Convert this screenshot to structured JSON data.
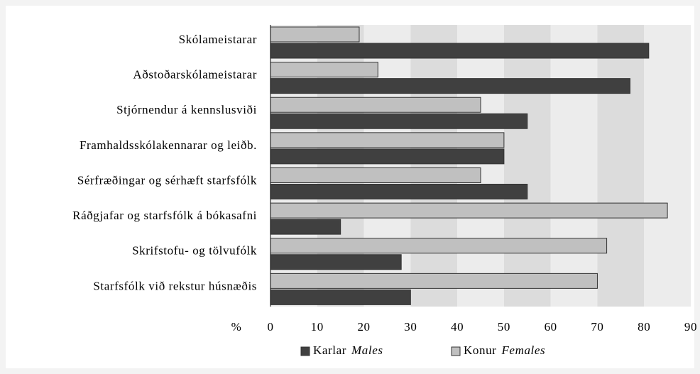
{
  "chart_data": {
    "type": "barh",
    "categories": [
      "Skólameistarar",
      "Aðstoðarskólameistarar",
      "Stjórnendur á kennslusviði",
      "Framhaldsskólakennarar og leiðb.",
      "Sérfræðingar og sérhæft starfsfólk",
      "Ráðgjafar og starfsfólk á bókasafni",
      "Skrifstofu- og tölvufólk",
      "Starfsfólk við rekstur húsnæðis"
    ],
    "series": [
      {
        "name": "Konur",
        "name_en": "Females",
        "color": "#c0c0c0",
        "values": [
          19,
          23,
          45,
          50,
          45,
          85,
          72,
          70
        ]
      },
      {
        "name": "Karlar",
        "name_en": "Males",
        "color": "#404040",
        "values": [
          81,
          77,
          55,
          50,
          55,
          15,
          28,
          30
        ]
      }
    ],
    "legend_order": [
      1,
      0
    ],
    "xlabel": "%",
    "xlim": [
      0,
      90
    ],
    "xticks": [
      0,
      10,
      20,
      30,
      40,
      50,
      60,
      70,
      80,
      90
    ],
    "grid": true,
    "legend": "bottom"
  }
}
